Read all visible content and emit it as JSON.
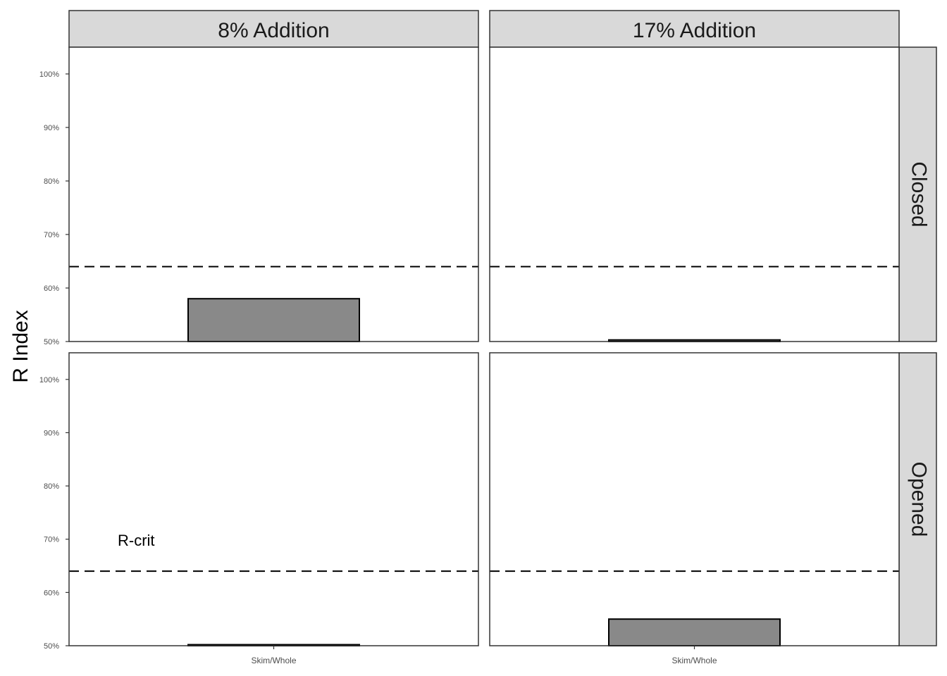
{
  "chart_data": {
    "type": "bar",
    "ylabel": "R Index",
    "xlabel": "",
    "ylim": [
      50,
      105
    ],
    "y_ticks": [
      50,
      60,
      70,
      80,
      90,
      100
    ],
    "y_tick_labels": [
      "50%",
      "60%",
      "70%",
      "80%",
      "90%",
      "100%"
    ],
    "categories": [
      "Skim/Whole"
    ],
    "facet_columns": [
      "8% Addition",
      "17% Addition"
    ],
    "facet_rows": [
      "Closed",
      "Opened"
    ],
    "reference_line": {
      "value": 64,
      "label": "R-crit",
      "style": "dashed"
    },
    "grid": false,
    "legend": "none",
    "panels": [
      {
        "column": "8% Addition",
        "row": "Closed",
        "values": [
          58
        ]
      },
      {
        "column": "17% Addition",
        "row": "Closed",
        "values": [
          50.3
        ]
      },
      {
        "column": "8% Addition",
        "row": "Opened",
        "values": [
          50.2
        ]
      },
      {
        "column": "17% Addition",
        "row": "Opened",
        "values": [
          55
        ]
      }
    ],
    "colors": {
      "bar_fill": "#898989",
      "bar_stroke": "#000000",
      "strip_fill": "#d9d9d9",
      "panel_border": "#333333"
    }
  }
}
